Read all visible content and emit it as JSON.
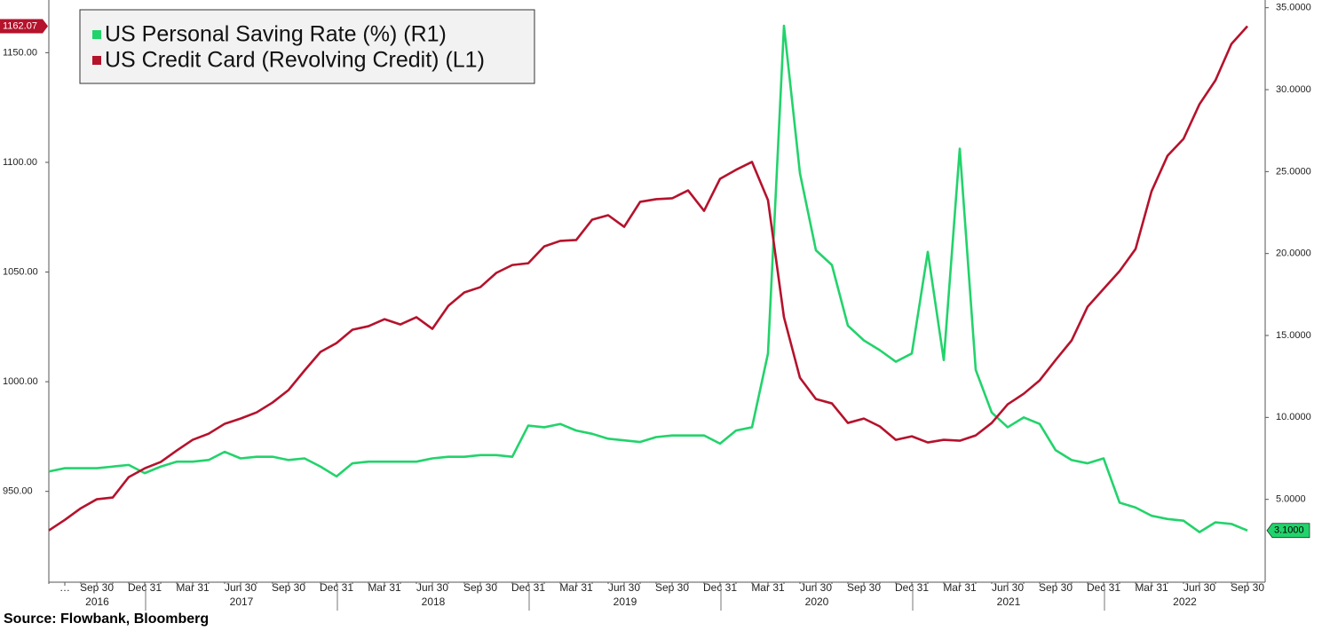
{
  "chart_data": {
    "type": "line",
    "legend": "top-left",
    "source": "Source: Flowbank, Bloomberg",
    "categories": [
      null,
      "…",
      null,
      "Sep 30",
      null,
      null,
      "Dec 31",
      null,
      null,
      "Mar 31",
      null,
      null,
      "Jun 30",
      null,
      null,
      "Sep 30",
      null,
      null,
      "Dec 31",
      null,
      null,
      "Mar 31",
      null,
      null,
      "Jun 30",
      null,
      null,
      "Sep 30",
      null,
      null,
      "Dec 31",
      null,
      null,
      "Mar 31",
      null,
      null,
      "Jun 30",
      null,
      null,
      "Sep 30",
      null,
      null,
      "Dec 31",
      null,
      null,
      "Mar 31",
      null,
      null,
      "Jun 30",
      null,
      null,
      "Sep 30",
      null,
      null,
      "Dec 31",
      null,
      null,
      "Mar 31",
      null,
      null,
      "Jun 30",
      null,
      null,
      "Sep 30",
      null,
      null,
      "Dec 31",
      null,
      null,
      "Mar 31",
      null,
      null,
      "Jun 30",
      null,
      null,
      "Sep 30"
    ],
    "years": [
      "2016",
      "2017",
      "2018",
      "2019",
      "2020",
      "2021",
      "2022"
    ],
    "ylim": [
      909,
      1172
    ],
    "yticks": [
      {
        "value": 950,
        "label": "950.00"
      },
      {
        "value": 1000,
        "label": "1000.00"
      },
      {
        "value": 1050,
        "label": "1050.00"
      },
      {
        "value": 1100,
        "label": "1100.00"
      },
      {
        "value": 1150,
        "label": "1150.00"
      }
    ],
    "y2lim": [
      0,
      35.2
    ],
    "y2ticks": [
      {
        "value": 5,
        "label": "5.0000"
      },
      {
        "value": 10,
        "label": "10.0000"
      },
      {
        "value": 15,
        "label": "15.0000"
      },
      {
        "value": 20,
        "label": "20.0000"
      },
      {
        "value": 25,
        "label": "25.0000"
      },
      {
        "value": 30,
        "label": "30.0000"
      },
      {
        "value": 35,
        "label": "35.0000"
      }
    ],
    "series": [
      {
        "name": "US Personal Saving Rate (%) (R1)",
        "color": "#22d36b",
        "axis": "y2",
        "values": [
          6.7,
          6.9,
          6.9,
          6.9,
          7.0,
          7.1,
          6.6,
          7.0,
          7.3,
          7.3,
          7.4,
          7.9,
          7.5,
          7.6,
          7.6,
          7.4,
          7.5,
          7.0,
          6.4,
          7.2,
          7.3,
          7.3,
          7.3,
          7.3,
          7.5,
          7.6,
          7.6,
          7.7,
          7.7,
          7.6,
          9.5,
          9.4,
          9.6,
          9.2,
          9.0,
          8.7,
          8.6,
          8.5,
          8.8,
          8.9,
          8.9,
          8.9,
          8.4,
          9.2,
          9.4,
          13.9,
          33.9,
          24.9,
          20.2,
          19.3,
          15.6,
          14.7,
          14.1,
          13.4,
          13.9,
          20.1,
          13.5,
          26.4,
          12.9,
          10.3,
          9.4,
          10.0,
          9.6,
          8.0,
          7.4,
          7.2,
          7.5,
          4.8,
          4.5,
          4.0,
          3.8,
          3.7,
          3.0,
          3.6,
          3.5,
          3.1
        ],
        "value_labels": [
          null,
          null,
          null,
          null,
          null,
          null,
          null,
          null,
          null,
          null,
          null,
          null,
          null,
          null,
          null,
          null,
          null,
          null,
          null,
          null,
          null,
          null,
          null,
          null,
          null,
          null,
          null,
          null,
          null,
          null,
          null,
          null,
          null,
          null,
          null,
          null,
          null,
          null,
          null,
          null,
          null,
          null,
          null,
          null,
          null,
          null,
          null,
          null,
          null,
          null,
          null,
          null,
          null,
          null,
          null,
          null,
          null,
          null,
          null,
          null,
          null,
          null,
          null,
          null,
          null,
          null,
          null,
          null,
          null,
          null,
          null,
          null,
          null,
          null,
          null,
          "3.1000"
        ]
      },
      {
        "name": "US Credit Card (Revolving Credit) (L1)",
        "color": "#b5122c",
        "axis": "y",
        "values": [
          932.2,
          937.0,
          942.3,
          946.4,
          947.2,
          956.5,
          960.5,
          963.4,
          968.6,
          973.5,
          976.3,
          980.8,
          983.2,
          986.0,
          990.5,
          996.2,
          1005.1,
          1013.6,
          1017.6,
          1023.7,
          1025.3,
          1028.5,
          1026.1,
          1029.4,
          1024.1,
          1034.6,
          1040.7,
          1043.1,
          1049.6,
          1053.2,
          1054.0,
          1061.7,
          1064.2,
          1064.6,
          1073.9,
          1075.9,
          1070.6,
          1082.0,
          1083.2,
          1083.6,
          1087.2,
          1077.9,
          1092.5,
          1096.6,
          1100.2,
          1082.8,
          1029.4,
          1001.8,
          992.1,
          990.1,
          981.2,
          983.2,
          979.6,
          973.5,
          975.1,
          972.3,
          973.5,
          973.1,
          975.5,
          981.2,
          989.7,
          994.5,
          1000.6,
          1009.9,
          1018.8,
          1034.2,
          1042.3,
          1050.4,
          1060.5,
          1086.8,
          1103.0,
          1110.7,
          1126.5,
          1137.4,
          1154.0,
          1162.07
        ],
        "value_labels": [
          null,
          null,
          null,
          null,
          null,
          null,
          null,
          null,
          null,
          null,
          null,
          null,
          null,
          null,
          null,
          null,
          null,
          null,
          null,
          null,
          null,
          null,
          null,
          null,
          null,
          null,
          null,
          null,
          null,
          null,
          null,
          null,
          null,
          null,
          null,
          null,
          null,
          null,
          null,
          null,
          null,
          null,
          null,
          null,
          null,
          null,
          null,
          null,
          null,
          null,
          null,
          null,
          null,
          null,
          null,
          null,
          null,
          null,
          null,
          null,
          null,
          null,
          null,
          null,
          null,
          null,
          null,
          null,
          null,
          null,
          null,
          null,
          null,
          null,
          null,
          "1162.07"
        ]
      }
    ]
  }
}
